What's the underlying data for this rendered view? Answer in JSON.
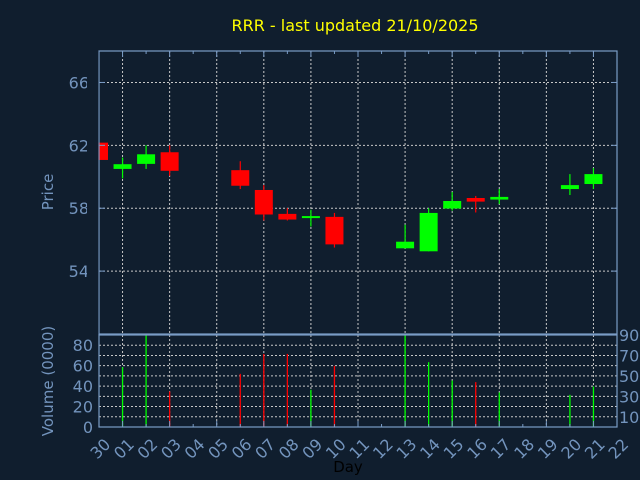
{
  "chart_data": [
    {
      "type": "candlestick",
      "title": "RRR - last updated 21/10/2025",
      "ylabel": "Price",
      "ylim": [
        50,
        68
      ],
      "yticks": [
        54,
        58,
        62,
        66
      ],
      "grid": true,
      "colors": {
        "up": "#00ff00",
        "down": "#ff0000",
        "title": "#ffff00",
        "axis": "#7a9cc6",
        "background": "#101e2e",
        "grid": "#c8c8c8"
      },
      "candles": [
        {
          "date": "2025-09-30",
          "open": 62.17,
          "high": 62.2,
          "low": 61.07,
          "close": 61.07
        },
        {
          "date": "2025-10-01",
          "open": 60.5,
          "high": 61.22,
          "low": 59.9,
          "close": 60.8
        },
        {
          "date": "2025-10-02",
          "open": 60.82,
          "high": 62.0,
          "low": 60.5,
          "close": 61.43
        },
        {
          "date": "2025-10-03",
          "open": 61.56,
          "high": 62.0,
          "low": 60.06,
          "close": 60.38
        },
        {
          "date": "2025-10-06",
          "open": 60.42,
          "high": 60.99,
          "low": 59.22,
          "close": 59.43
        },
        {
          "date": "2025-10-07",
          "open": 59.16,
          "high": 59.47,
          "low": 57.22,
          "close": 57.6
        },
        {
          "date": "2025-10-08",
          "open": 57.64,
          "high": 58.0,
          "low": 57.22,
          "close": 57.28
        },
        {
          "date": "2025-10-09",
          "open": 57.4,
          "high": 57.9,
          "low": 56.84,
          "close": 57.5
        },
        {
          "date": "2025-10-10",
          "open": 57.45,
          "high": 57.7,
          "low": 55.5,
          "close": 55.7
        },
        {
          "date": "2025-10-13",
          "open": 55.45,
          "high": 56.95,
          "low": 55.45,
          "close": 55.87
        },
        {
          "date": "2025-10-14",
          "open": 55.26,
          "high": 58.0,
          "low": 55.26,
          "close": 57.7
        },
        {
          "date": "2025-10-15",
          "open": 57.98,
          "high": 59.03,
          "low": 57.85,
          "close": 58.46
        },
        {
          "date": "2025-10-16",
          "open": 58.65,
          "high": 58.78,
          "low": 57.73,
          "close": 58.42
        },
        {
          "date": "2025-10-17",
          "open": 58.55,
          "high": 59.22,
          "low": 58.27,
          "close": 58.72
        },
        {
          "date": "2025-10-20",
          "open": 59.22,
          "high": 60.17,
          "low": 58.84,
          "close": 59.47
        },
        {
          "date": "2025-10-21",
          "open": 59.54,
          "high": 60.55,
          "low": 59.22,
          "close": 60.17
        }
      ]
    },
    {
      "type": "bar",
      "ylabel": "Volume (0000)",
      "xlabel": "Day",
      "ylim": [
        0,
        90
      ],
      "yticks": [
        0,
        10,
        20,
        30,
        40,
        50,
        60,
        70,
        80,
        90
      ],
      "grid": true,
      "xticks": [
        "30",
        "01",
        "02",
        "03",
        "04",
        "05",
        "06",
        "07",
        "08",
        "09",
        "10",
        "11",
        "12",
        "13",
        "14",
        "15",
        "16",
        "17",
        "18",
        "19",
        "20",
        "21",
        "22"
      ],
      "bars": [
        {
          "date": "2025-10-01",
          "value": 58.5,
          "direction": "up"
        },
        {
          "date": "2025-10-02",
          "value": 90,
          "direction": "up"
        },
        {
          "date": "2025-10-03",
          "value": 34.8,
          "direction": "down"
        },
        {
          "date": "2025-10-06",
          "value": 52,
          "direction": "down"
        },
        {
          "date": "2025-10-07",
          "value": 71.5,
          "direction": "down"
        },
        {
          "date": "2025-10-08",
          "value": 71.5,
          "direction": "down"
        },
        {
          "date": "2025-10-09",
          "value": 36.4,
          "direction": "up"
        },
        {
          "date": "2025-10-10",
          "value": 59.8,
          "direction": "down"
        },
        {
          "date": "2025-10-13",
          "value": 90,
          "direction": "up"
        },
        {
          "date": "2025-10-14",
          "value": 63.4,
          "direction": "up"
        },
        {
          "date": "2025-10-15",
          "value": 45.5,
          "direction": "up"
        },
        {
          "date": "2025-10-16",
          "value": 43.9,
          "direction": "down"
        },
        {
          "date": "2025-10-17",
          "value": 33.8,
          "direction": "up"
        },
        {
          "date": "2025-10-20",
          "value": 31.5,
          "direction": "up"
        },
        {
          "date": "2025-10-21",
          "value": 39.6,
          "direction": "up"
        }
      ]
    }
  ]
}
